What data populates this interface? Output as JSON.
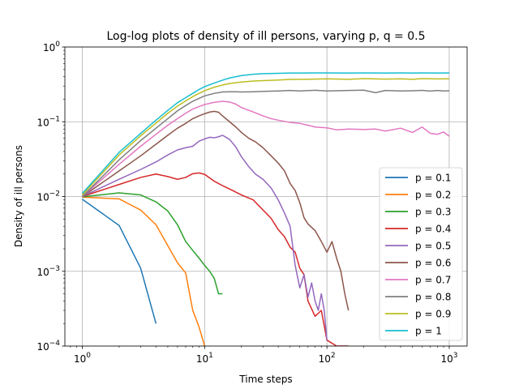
{
  "chart_data": {
    "type": "line",
    "title": "Log-log plots of density of ill persons, varying p, q = 0.5",
    "xlabel": "Time steps",
    "ylabel": "Density of ill persons",
    "xscale": "log",
    "yscale": "log",
    "xlim": [
      0.72,
      1400
    ],
    "ylim": [
      0.0001,
      1
    ],
    "grid": true,
    "legend_position": "lower-right",
    "x_ticks": [
      {
        "value": 1,
        "base": "10",
        "exp": "0"
      },
      {
        "value": 10,
        "base": "10",
        "exp": "1"
      },
      {
        "value": 100,
        "base": "10",
        "exp": "2"
      },
      {
        "value": 1000,
        "base": "10",
        "exp": "3"
      }
    ],
    "y_ticks": [
      {
        "value": 0.0001,
        "base": "10",
        "exp": "−4"
      },
      {
        "value": 0.001,
        "base": "10",
        "exp": "−3"
      },
      {
        "value": 0.01,
        "base": "10",
        "exp": "−2"
      },
      {
        "value": 0.1,
        "base": "10",
        "exp": "−1"
      },
      {
        "value": 1,
        "base": "10",
        "exp": "0"
      }
    ],
    "series": [
      {
        "name": "p = 0.1",
        "color": "#1f77b4",
        "x": [
          1,
          2,
          3,
          4
        ],
        "y": [
          0.0092,
          0.0041,
          0.0011,
          0.0002
        ]
      },
      {
        "name": "p = 0.2",
        "color": "#ff7f0e",
        "x": [
          1,
          2,
          3,
          4,
          5,
          6,
          7,
          8,
          9,
          10,
          11
        ],
        "y": [
          0.0098,
          0.0093,
          0.0066,
          0.0042,
          0.0022,
          0.0013,
          0.00095,
          0.0003,
          0.00018,
          0.0001,
          6e-05
        ]
      },
      {
        "name": "p = 0.3",
        "color": "#2ca02c",
        "x": [
          1,
          2,
          3,
          4,
          5,
          6,
          7,
          8,
          9,
          10,
          11,
          12,
          13,
          14
        ],
        "y": [
          0.0099,
          0.0112,
          0.0105,
          0.0085,
          0.0064,
          0.0042,
          0.0025,
          0.0019,
          0.0015,
          0.0012,
          0.001,
          0.0008,
          0.0005,
          0.0005
        ]
      },
      {
        "name": "p = 0.4",
        "color": "#d62728",
        "x": [
          1,
          2,
          3,
          4,
          5,
          6,
          7,
          8,
          9,
          10,
          12,
          14,
          17,
          20,
          25,
          30,
          35,
          40,
          45,
          50,
          55,
          60,
          65,
          70,
          80,
          90,
          100,
          120,
          150
        ],
        "y": [
          0.01,
          0.0145,
          0.018,
          0.02,
          0.0185,
          0.017,
          0.018,
          0.0202,
          0.0207,
          0.0198,
          0.016,
          0.014,
          0.012,
          0.0105,
          0.009,
          0.0066,
          0.0051,
          0.0036,
          0.0029,
          0.0021,
          0.0018,
          0.0011,
          0.0009,
          0.0004,
          0.00025,
          0.0003,
          0.00012,
          0.0001,
          0.0001
        ]
      },
      {
        "name": "p = 0.5",
        "color": "#9467bd",
        "x": [
          1,
          2,
          3,
          4,
          5,
          6,
          7,
          8,
          9,
          10,
          11,
          12,
          13,
          14,
          16,
          18,
          20,
          23,
          26,
          30,
          35,
          40,
          45,
          50,
          55,
          60,
          65,
          70,
          75,
          80,
          85,
          90,
          95,
          100
        ],
        "y": [
          0.01,
          0.017,
          0.023,
          0.029,
          0.036,
          0.042,
          0.045,
          0.047,
          0.055,
          0.059,
          0.062,
          0.061,
          0.063,
          0.066,
          0.058,
          0.046,
          0.034,
          0.025,
          0.02,
          0.017,
          0.013,
          0.009,
          0.006,
          0.004,
          0.0012,
          0.0006,
          0.0009,
          0.00045,
          0.0007,
          0.0004,
          0.0003,
          0.0005,
          0.0003,
          0.00012
        ]
      },
      {
        "name": "p = 0.6",
        "color": "#8c564b",
        "x": [
          1,
          2,
          3,
          4,
          5,
          6,
          7,
          8,
          9,
          10,
          11,
          12,
          13,
          14,
          16,
          18,
          20,
          23,
          26,
          30,
          35,
          40,
          45,
          50,
          55,
          60,
          65,
          70,
          80,
          90,
          100,
          110,
          120,
          130,
          140,
          150
        ],
        "y": [
          0.01,
          0.022,
          0.035,
          0.05,
          0.066,
          0.082,
          0.095,
          0.11,
          0.12,
          0.128,
          0.135,
          0.138,
          0.134,
          0.12,
          0.1,
          0.085,
          0.072,
          0.06,
          0.054,
          0.045,
          0.035,
          0.028,
          0.022,
          0.015,
          0.012,
          0.0083,
          0.0052,
          0.0043,
          0.0035,
          0.0025,
          0.0018,
          0.0025,
          0.0015,
          0.001,
          0.0005,
          0.0003
        ]
      },
      {
        "name": "p = 0.7",
        "color": "#e377c2",
        "x": [
          1,
          2,
          3,
          4,
          5,
          6,
          7,
          8,
          9,
          10,
          12,
          14,
          16,
          18,
          20,
          25,
          30,
          35,
          40,
          50,
          60,
          70,
          80,
          100,
          120,
          150,
          200,
          250,
          300,
          400,
          500,
          600,
          700,
          800,
          900,
          1000
        ],
        "y": [
          0.01,
          0.027,
          0.047,
          0.068,
          0.09,
          0.11,
          0.13,
          0.148,
          0.16,
          0.17,
          0.182,
          0.188,
          0.184,
          0.172,
          0.155,
          0.135,
          0.12,
          0.11,
          0.105,
          0.098,
          0.095,
          0.09,
          0.085,
          0.083,
          0.078,
          0.08,
          0.079,
          0.08,
          0.075,
          0.082,
          0.072,
          0.085,
          0.07,
          0.068,
          0.073,
          0.064
        ]
      },
      {
        "name": "p = 0.8",
        "color": "#7f7f7f",
        "x": [
          1,
          2,
          3,
          4,
          5,
          6,
          7,
          8,
          9,
          10,
          12,
          14,
          16,
          18,
          20,
          25,
          30,
          40,
          50,
          60,
          80,
          100,
          150,
          200,
          250,
          300,
          400,
          500,
          600,
          700,
          800,
          900,
          1000
        ],
        "y": [
          0.01,
          0.031,
          0.056,
          0.082,
          0.11,
          0.14,
          0.165,
          0.188,
          0.205,
          0.222,
          0.24,
          0.25,
          0.252,
          0.252,
          0.25,
          0.252,
          0.255,
          0.258,
          0.262,
          0.258,
          0.264,
          0.258,
          0.262,
          0.265,
          0.245,
          0.262,
          0.258,
          0.26,
          0.263,
          0.257,
          0.262,
          0.258,
          0.26
        ]
      },
      {
        "name": "p = 0.9",
        "color": "#bcbd22",
        "x": [
          1,
          2,
          3,
          4,
          5,
          6,
          7,
          8,
          9,
          10,
          12,
          14,
          16,
          20,
          25,
          30,
          40,
          50,
          60,
          80,
          100,
          150,
          200,
          300,
          400,
          500,
          600,
          800,
          1000
        ],
        "y": [
          0.0105,
          0.036,
          0.065,
          0.096,
          0.13,
          0.162,
          0.19,
          0.217,
          0.24,
          0.26,
          0.29,
          0.31,
          0.325,
          0.34,
          0.35,
          0.355,
          0.362,
          0.368,
          0.37,
          0.372,
          0.375,
          0.37,
          0.378,
          0.372,
          0.376,
          0.37,
          0.378,
          0.374,
          0.376
        ]
      },
      {
        "name": "p = 1",
        "color": "#17becf",
        "x": [
          1,
          2,
          3,
          4,
          5,
          6,
          7,
          8,
          9,
          10,
          12,
          14,
          16,
          20,
          25,
          30,
          40,
          50,
          60,
          80,
          100,
          150,
          200,
          300,
          400,
          500,
          600,
          800,
          1000
        ],
        "y": [
          0.011,
          0.039,
          0.07,
          0.105,
          0.142,
          0.18,
          0.21,
          0.24,
          0.27,
          0.295,
          0.33,
          0.36,
          0.385,
          0.415,
          0.432,
          0.44,
          0.445,
          0.448,
          0.448,
          0.45,
          0.45,
          0.449,
          0.45,
          0.448,
          0.45,
          0.449,
          0.45,
          0.448,
          0.45
        ]
      }
    ]
  }
}
